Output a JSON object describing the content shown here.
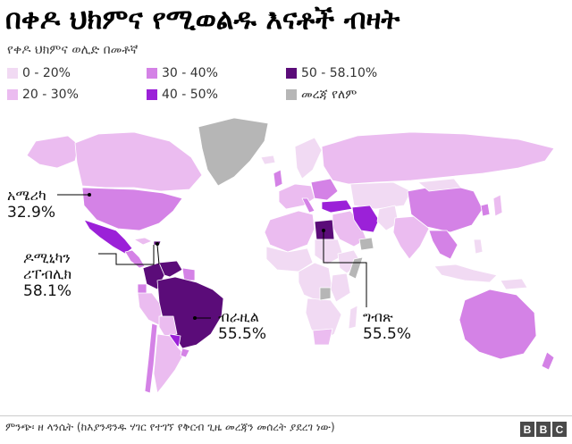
{
  "title": "በቀዶ ህክምና የሚወልዱ እናቶች ብዛት",
  "subtitle": "የቀዶ ህክምና ወሊድ በመቶኛ",
  "legend": [
    {
      "label": "0 - 20%",
      "color": "#f1daf3"
    },
    {
      "label": "20 - 30%",
      "color": "#ebbcf0"
    },
    {
      "label": "30 - 40%",
      "color": "#d482e6"
    },
    {
      "label": "40 - 50%",
      "color": "#9b21d8"
    },
    {
      "label": "50 - 58.10%",
      "color": "#5b0c79"
    },
    {
      "label": "መረጃ የለም",
      "color": "#b6b6b6"
    }
  ],
  "callouts": {
    "usa": {
      "name": "አሜሪካ",
      "value": "32.9%"
    },
    "dominican": {
      "name_line1": "ዶሚኒካን",
      "name_line2": "ሪፐብሊክ",
      "value": "58.1%"
    },
    "brazil": {
      "name": "ብራዚል",
      "value": "55.5%"
    },
    "egypt": {
      "name": "ግብጽ",
      "value": "55.5%"
    }
  },
  "footer": {
    "source": "ምንጭ፡ ዘ ላንሴት (ከእያንዳንዱ ሃገር የተገኘ የቅርብ ጊዜ መረጃን መሰረት ያደረገ ነው)",
    "logo": [
      "B",
      "B",
      "C"
    ]
  }
}
